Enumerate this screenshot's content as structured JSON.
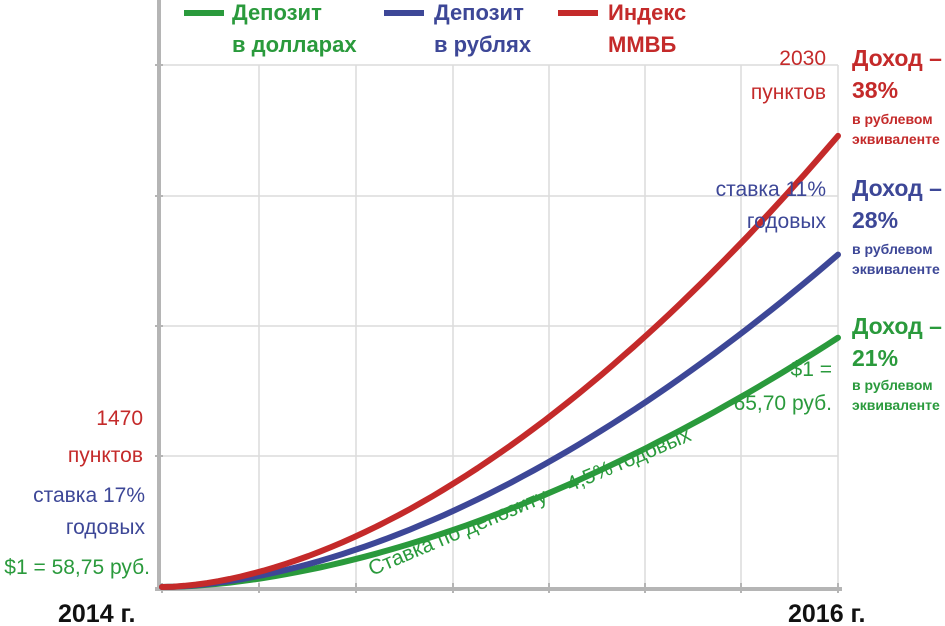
{
  "chart_data": {
    "type": "line",
    "x_labels": [
      "2014 г.",
      "2016 г."
    ],
    "colors": {
      "dollars": "#2a9a3c",
      "rubles": "#3d4797",
      "index": "#c42a2a"
    },
    "series": [
      {
        "key": "dollars",
        "name": "Депозит в долларах",
        "legend_lines": [
          "Депозит",
          "в долларах"
        ],
        "start": 0,
        "end": 21
      },
      {
        "key": "rubles",
        "name": "Депозит в рублях",
        "legend_lines": [
          "Депозит",
          "в рублях"
        ],
        "start": 0,
        "end": 28
      },
      {
        "key": "index",
        "name": "Индекс ММВБ",
        "legend_lines": [
          "Индекс",
          "ММВБ"
        ],
        "start": 0,
        "end": 38
      }
    ],
    "left_annotations": {
      "index": [
        "1470",
        "пунктов"
      ],
      "rubles": [
        "ставка 17%",
        "годовых"
      ],
      "dollars": [
        "$1 = 58,75 руб."
      ]
    },
    "right_annotations": {
      "index": [
        "2030",
        "пунктов"
      ],
      "rubles": [
        "ставка 11%",
        "годовых"
      ],
      "dollars": [
        "$1 =",
        "65,70 руб."
      ]
    },
    "curve_label": "Ставка по депозиту – 4,5% годовых",
    "results": [
      {
        "key": "index",
        "head1": "Доход –",
        "head2": "38%",
        "sub1": "в рублевом",
        "sub2": "эквиваленте"
      },
      {
        "key": "rubles",
        "head1": "Доход –",
        "head2": "28%",
        "sub1": "в рублевом",
        "sub2": "эквиваленте"
      },
      {
        "key": "dollars",
        "head1": "Доход –",
        "head2": "21%",
        "sub1": "в рублевом",
        "sub2": "эквиваленте"
      }
    ]
  }
}
